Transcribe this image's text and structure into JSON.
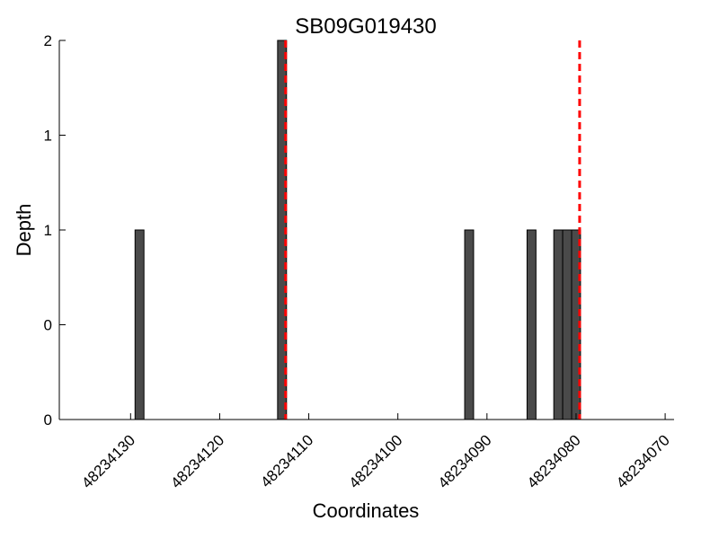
{
  "chart_data": {
    "type": "bar",
    "title": "SB09G019430",
    "xlabel": "Coordinates",
    "ylabel": "Depth",
    "x_axis_inverted": true,
    "xlim": [
      48234138,
      48234069
    ],
    "ylim": [
      0,
      2
    ],
    "y_ticks": [
      {
        "value": 0,
        "label": "0"
      },
      {
        "value": 0.5,
        "label": "0"
      },
      {
        "value": 1,
        "label": "1"
      },
      {
        "value": 1.5,
        "label": "1"
      },
      {
        "value": 2,
        "label": "2"
      }
    ],
    "x_ticks": [
      {
        "value": 48234130,
        "label": "48234130"
      },
      {
        "value": 48234120,
        "label": "48234120"
      },
      {
        "value": 48234110,
        "label": "48234110"
      },
      {
        "value": 48234100,
        "label": "48234100"
      },
      {
        "value": 48234090,
        "label": "48234090"
      },
      {
        "value": 48234080,
        "label": "48234080"
      },
      {
        "value": 48234070,
        "label": "48234070"
      }
    ],
    "bar_width": 1,
    "bars": [
      {
        "x": 48234129,
        "value": 1
      },
      {
        "x": 48234113,
        "value": 2
      },
      {
        "x": 48234092,
        "value": 1
      },
      {
        "x": 48234085,
        "value": 1
      },
      {
        "x": 48234082,
        "value": 1
      },
      {
        "x": 48234081,
        "value": 1
      },
      {
        "x": 48234080,
        "value": 1
      }
    ],
    "reference_lines": [
      {
        "x": 48234112.6,
        "color": "#ff0000",
        "style": "dashed"
      },
      {
        "x": 48234079.6,
        "color": "#ff0000",
        "style": "dashed"
      }
    ],
    "bar_color": "#4a4a4a",
    "bar_edge_color": "#000000",
    "grid": false
  }
}
